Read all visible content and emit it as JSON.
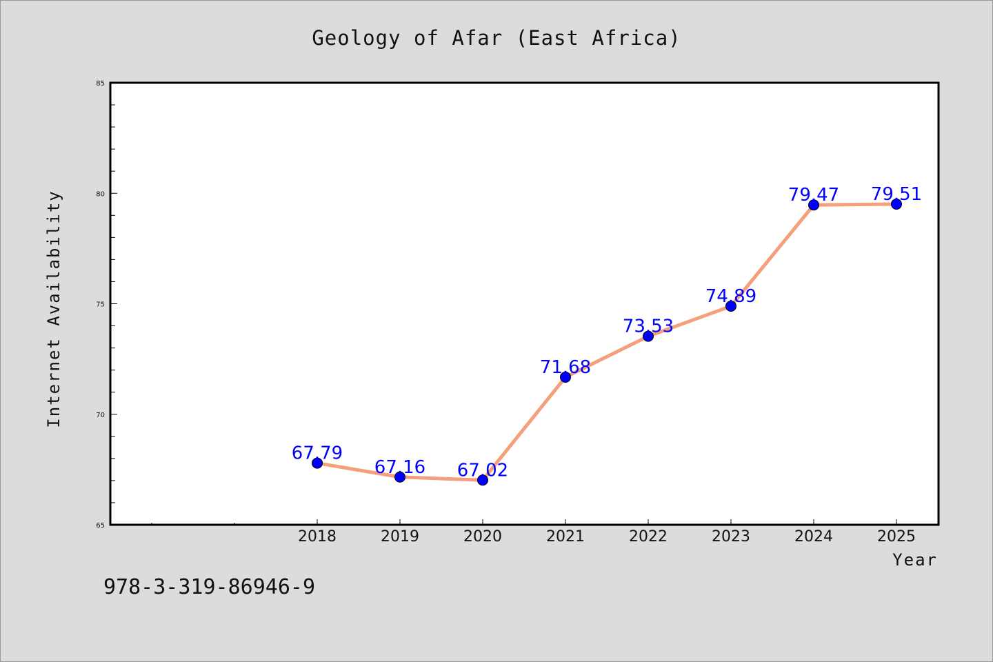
{
  "footer": {
    "identifier": "978-3-319-86946-9"
  },
  "chart_data": {
    "type": "line",
    "title": "Geology of Afar (East Africa)",
    "xlabel": "Year",
    "ylabel": "Internet Availability",
    "categories": [
      "2018",
      "2019",
      "2020",
      "2021",
      "2022",
      "2023",
      "2024",
      "2025"
    ],
    "series": [
      {
        "values": [
          67.79,
          67.16,
          67.02,
          71.68,
          73.53,
          74.89,
          79.47,
          79.51
        ],
        "labels": [
          "67.79",
          "67.16",
          "67.02",
          "71.68",
          "73.53",
          "74.89",
          "79.47",
          "79.51"
        ],
        "line_color": "#f4a07c",
        "marker_color": "#0000ff"
      }
    ],
    "ylim": [
      65,
      85
    ],
    "yticks": [
      65,
      70,
      75,
      80,
      85
    ],
    "ytick_labels": [
      "65",
      "70",
      "75",
      "80",
      "85"
    ],
    "grid": false,
    "legend": "none"
  }
}
